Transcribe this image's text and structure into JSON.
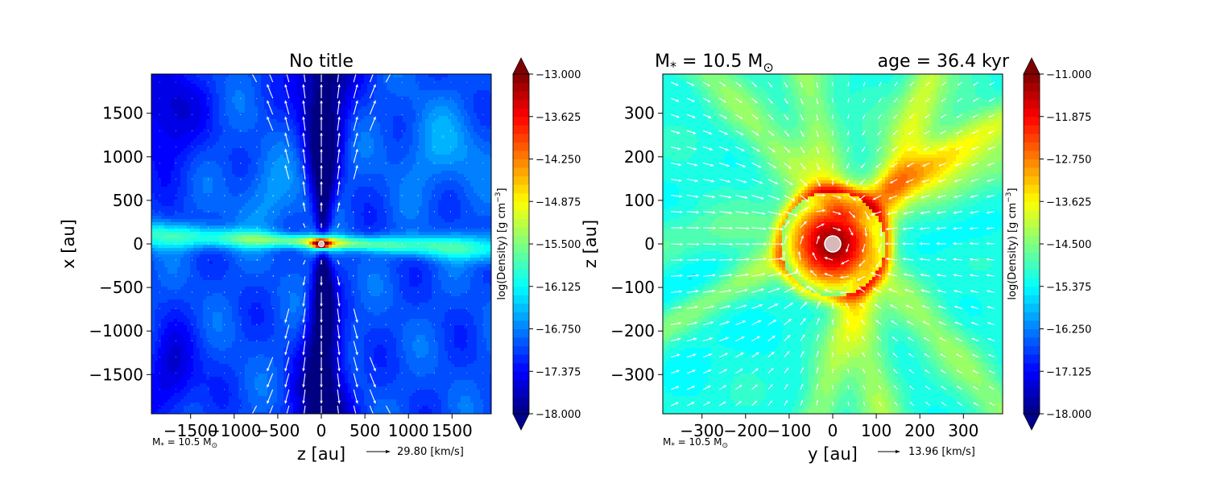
{
  "chart_data": [
    {
      "type": "heatmap",
      "subtype": "filled-contour with velocity quiver",
      "title": "No title",
      "xlabel": "z [au]",
      "ylabel": "x [au]",
      "xlim": [
        -1950,
        1950
      ],
      "ylim": [
        -1950,
        1950
      ],
      "xticks": [
        -1500,
        -1000,
        -500,
        0,
        500,
        1000,
        1500
      ],
      "xtick_labels": [
        "−1500",
        "−1000",
        "−500",
        "0",
        "500",
        "1000",
        "1500"
      ],
      "yticks": [
        -1500,
        -1000,
        -500,
        0,
        500,
        1000,
        1500
      ],
      "ytick_labels": [
        "−1500",
        "−1000",
        "−500",
        "0",
        "500",
        "1000",
        "1500"
      ],
      "colorbar": {
        "label": "log(Density) [g cm$^{-3}$]",
        "label_text": "log(Density) [g cm",
        "label_sup": "−3",
        "label_close": "]",
        "min": -18.0,
        "max": -13.0,
        "ticks": [
          -13.0,
          -13.625,
          -14.25,
          -14.875,
          -15.5,
          -16.125,
          -16.75,
          -17.375,
          -18.0
        ],
        "tick_labels": [
          "−13.000",
          "−13.625",
          "−14.250",
          "−14.875",
          "−15.500",
          "−16.125",
          "−16.750",
          "−17.375",
          "−18.000"
        ],
        "colormap": "jet",
        "extend": "both"
      },
      "structures": {
        "disk_midplane_density": -15.4,
        "outflow_cavity_density": -17.6,
        "central_peak_density": -13.0,
        "background_density": -17.0,
        "corner_density": -17.7
      },
      "quiver_key": {
        "label": "29.80 [km/s]",
        "value": 29.8
      },
      "annotation": "M$_*$ = 10.5 M$_\\odot$",
      "annotation_text": "M",
      "annotation_sub": "*",
      "annotation_tail": " = 10.5 M",
      "annotation_sub2": "⊙"
    },
    {
      "type": "heatmap",
      "subtype": "filled-contour with velocity quiver",
      "title_left": "M",
      "title_left_sub": "*",
      "title_left_tail": " = 10.5 M",
      "title_left_sub2": "⊙",
      "title_right": "age = 36.4 kyr",
      "xlabel": "y [au]",
      "ylabel": "z [au]",
      "xlim": [
        -390,
        390
      ],
      "ylim": [
        -390,
        390
      ],
      "xticks": [
        -300,
        -200,
        -100,
        0,
        100,
        200,
        300
      ],
      "xtick_labels": [
        "−300",
        "−200",
        "−100",
        "0",
        "100",
        "200",
        "300"
      ],
      "yticks": [
        -300,
        -200,
        -100,
        0,
        100,
        200,
        300
      ],
      "ytick_labels": [
        "−300",
        "−200",
        "−100",
        "0",
        "100",
        "200",
        "300"
      ],
      "colorbar": {
        "label": "log(Density) [g cm$^{-3}$]",
        "label_text": "log(Density) [g cm",
        "label_sup": "−3",
        "label_close": "]",
        "min": -18.0,
        "max": -11.0,
        "ticks": [
          -11.0,
          -11.875,
          -12.75,
          -13.625,
          -14.5,
          -15.375,
          -16.25,
          -17.125,
          -18.0
        ],
        "tick_labels": [
          "−11.000",
          "−11.875",
          "−12.750",
          "−13.625",
          "−14.500",
          "−15.375",
          "−16.250",
          "−17.125",
          "−18.000"
        ],
        "colormap": "jet",
        "extend": "both"
      },
      "structures": {
        "core_radius_au": 120,
        "core_peak_density": -11.0,
        "background_density": -15.2,
        "filament_density": -14.3
      },
      "quiver_key": {
        "label": "13.96 [km/s]",
        "value": 13.96
      },
      "annotation": "M$_*$ = 10.5 M$_\\odot$",
      "annotation_text": "M",
      "annotation_sub": "*",
      "annotation_tail": " = 10.5 M",
      "annotation_sub2": "⊙"
    }
  ]
}
